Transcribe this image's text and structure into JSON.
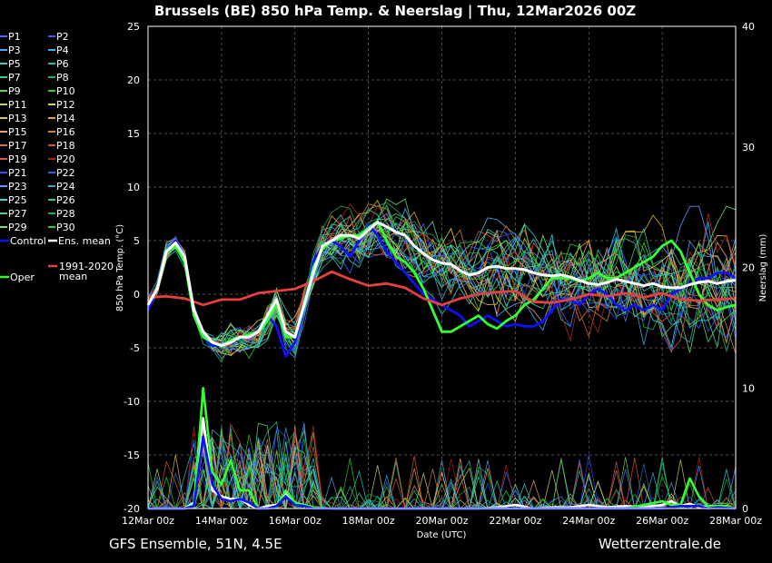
{
  "chart_data": {
    "type": "line",
    "title": "Brussels  (BE)  850 hPa Temp. & Neerslag | Thu, 12Mar2026 00Z",
    "xlabel": "Date (UTC)",
    "ylabel": "850 hPa Temp. (°C)",
    "y2label": "Neerslag (mm)",
    "ylim": [
      -20,
      25
    ],
    "yticks": [
      25,
      20,
      15,
      10,
      5,
      0,
      -5,
      -10,
      -15,
      -20
    ],
    "y2lim": [
      0,
      40
    ],
    "y2ticks": [
      40,
      30,
      20,
      10,
      0
    ],
    "xlim_days": [
      0,
      16
    ],
    "xticks": [
      "12Mar 00z",
      "14Mar 00z",
      "16Mar 00z",
      "18Mar 00z",
      "20Mar 00z",
      "22Mar 00z",
      "24Mar 00z",
      "26Mar 00z",
      "28Mar 00z"
    ],
    "grid": true,
    "legend_position": "left",
    "legend": [
      {
        "name": "P1",
        "color": "#4d6bff"
      },
      {
        "name": "P2",
        "color": "#3a5eff"
      },
      {
        "name": "P3",
        "color": "#4aa8ff"
      },
      {
        "name": "P4",
        "color": "#3fb4e8"
      },
      {
        "name": "P5",
        "color": "#2ad1d1"
      },
      {
        "name": "P6",
        "color": "#23c2a8"
      },
      {
        "name": "P7",
        "color": "#34d19a"
      },
      {
        "name": "P8",
        "color": "#20b060"
      },
      {
        "name": "P9",
        "color": "#5cd65c"
      },
      {
        "name": "P10",
        "color": "#2bcf2b"
      },
      {
        "name": "P11",
        "color": "#b8d96a"
      },
      {
        "name": "P12",
        "color": "#d8d060"
      },
      {
        "name": "P13",
        "color": "#e6c040"
      },
      {
        "name": "P14",
        "color": "#e0a830"
      },
      {
        "name": "P15",
        "color": "#e8a070"
      },
      {
        "name": "P16",
        "color": "#c88040"
      },
      {
        "name": "P17",
        "color": "#e07040"
      },
      {
        "name": "P18",
        "color": "#d05a30"
      },
      {
        "name": "P19",
        "color": "#e05050"
      },
      {
        "name": "P20",
        "color": "#b02020"
      },
      {
        "name": "P21",
        "color": "#3050ff"
      },
      {
        "name": "P22",
        "color": "#2068d8"
      },
      {
        "name": "P23",
        "color": "#5a9cff"
      },
      {
        "name": "P24",
        "color": "#40a0d0"
      },
      {
        "name": "P25",
        "color": "#30d8e0"
      },
      {
        "name": "P26",
        "color": "#28c8a0"
      },
      {
        "name": "P27",
        "color": "#50d090"
      },
      {
        "name": "P28",
        "color": "#18a850"
      },
      {
        "name": "P29",
        "color": "#70e070"
      },
      {
        "name": "P30",
        "color": "#30d030"
      },
      {
        "name": "Control",
        "color": "#1010ff"
      },
      {
        "name": "Ens. mean",
        "color": "#ffffff"
      },
      {
        "name": "1991-2020 mean",
        "color": "#e84040"
      },
      {
        "name": "Oper",
        "color": "#33ff33"
      }
    ],
    "temperature_series": [
      {
        "name": "Control",
        "color": "#1010ff",
        "x": [
          0,
          0.25,
          0.5,
          0.75,
          1,
          1.25,
          1.5,
          1.75,
          2,
          2.25,
          2.5,
          2.75,
          3,
          3.25,
          3.5,
          3.75,
          4,
          4.25,
          4.5,
          4.75,
          5,
          5.25,
          5.5,
          5.75,
          6,
          6.25,
          6.5,
          6.75,
          7,
          7.25,
          7.5,
          7.75,
          8,
          8.25,
          8.5,
          8.75,
          9,
          9.25,
          9.5,
          9.75,
          10,
          10.25,
          10.5,
          10.75,
          11,
          11.25,
          11.5,
          11.75,
          12,
          12.25,
          12.5,
          12.75,
          13,
          13.25,
          13.5,
          13.75,
          14,
          14.25,
          14.5,
          14.75,
          15,
          15.25,
          15.5,
          15.75,
          16
        ],
        "y": [
          -1.5,
          0.5,
          4,
          5,
          3.5,
          -1.5,
          -4,
          -4.8,
          -4.8,
          -4.5,
          -4,
          -4,
          -3.5,
          -2,
          -3,
          -5.8,
          -4.5,
          -1,
          3,
          4.5,
          5,
          4.5,
          3.5,
          5,
          6.5,
          5.5,
          4,
          3,
          2,
          1,
          0,
          -0.5,
          -1,
          -1.5,
          -2,
          -3,
          -2.5,
          -2,
          -2.5,
          -3,
          -2.8,
          -3,
          -3,
          -2.5,
          -1.5,
          -0.5,
          -0.5,
          -1,
          0,
          0.5,
          0,
          -1,
          -1.5,
          -1,
          -1.5,
          -1,
          -1.5,
          0,
          0.5,
          1,
          1.5,
          1.5,
          2,
          2,
          1.5
        ]
      },
      {
        "name": "Ens. mean",
        "color": "#ffffff",
        "x": [
          0,
          0.25,
          0.5,
          0.75,
          1,
          1.25,
          1.5,
          1.75,
          2,
          2.25,
          2.5,
          2.75,
          3,
          3.25,
          3.5,
          3.75,
          4,
          4.25,
          4.5,
          4.75,
          5,
          5.25,
          5.5,
          5.75,
          6,
          6.25,
          6.5,
          6.75,
          7,
          7.25,
          7.5,
          7.75,
          8,
          8.25,
          8.5,
          8.75,
          9,
          9.25,
          9.5,
          9.75,
          10,
          10.25,
          10.5,
          10.75,
          11,
          11.25,
          11.5,
          11.75,
          12,
          12.25,
          12.5,
          12.75,
          13,
          13.25,
          13.5,
          13.75,
          14,
          14.25,
          14.5,
          14.75,
          15,
          15.25,
          15.5,
          15.75,
          16
        ],
        "y": [
          -1,
          0.5,
          4,
          4.8,
          3.5,
          -1.5,
          -3.5,
          -4.5,
          -4.8,
          -4.5,
          -4,
          -4,
          -3.5,
          -2,
          -0.5,
          -3.5,
          -4,
          -1,
          2,
          4.5,
          5,
          5.5,
          5.5,
          5.2,
          6,
          6.7,
          6.3,
          5.8,
          5.5,
          4.5,
          3.8,
          3.2,
          2.9,
          2.8,
          2.2,
          1.8,
          2,
          2.5,
          2.6,
          2.4,
          2.4,
          2.3,
          2,
          1.8,
          1.7,
          1.8,
          1.6,
          1.3,
          1,
          0.9,
          1.1,
          1.4,
          1.2,
          1,
          0.8,
          1.0,
          0.7,
          0.6,
          0.6,
          0.9,
          1.1,
          1.2,
          1.0,
          1.2,
          1.3
        ]
      },
      {
        "name": "1991-2020 mean",
        "color": "#e84040",
        "x": [
          0,
          0.5,
          1,
          1.5,
          2,
          2.5,
          3,
          3.5,
          4,
          4.5,
          5,
          5.5,
          6,
          6.5,
          7,
          7.5,
          8,
          8.5,
          9,
          9.5,
          10,
          10.5,
          11,
          11.5,
          12,
          12.5,
          13,
          13.5,
          14,
          14.5,
          15,
          15.5,
          16
        ],
        "y": [
          -0.3,
          -0.2,
          -0.4,
          -1,
          -0.5,
          -0.5,
          0.1,
          0.3,
          0.5,
          1.2,
          2.1,
          1.4,
          0.8,
          1.0,
          0.6,
          -0.4,
          -1.0,
          -0.4,
          0,
          0.2,
          0.3,
          -0.7,
          -0.8,
          -0.5,
          0.0,
          -0.2,
          0.1,
          -0.3,
          0.1,
          -0.5,
          -0.6,
          -0.5,
          -0.4
        ]
      },
      {
        "name": "Oper",
        "color": "#33ff33",
        "x": [
          0,
          0.25,
          0.5,
          0.75,
          1,
          1.25,
          1.5,
          1.75,
          2,
          2.25,
          2.5,
          2.75,
          3,
          3.25,
          3.5,
          3.75,
          4,
          4.25,
          4.5,
          4.75,
          5,
          5.25,
          5.5,
          5.75,
          6,
          6.25,
          6.5,
          6.75,
          7,
          7.25,
          7.5,
          7.75,
          8,
          8.25,
          8.5,
          8.75,
          9,
          9.25,
          9.5,
          9.75,
          10,
          10.25,
          10.5,
          10.75,
          11,
          11.25,
          11.5,
          11.75,
          12,
          12.25,
          12.5,
          12.75,
          13,
          13.25,
          13.5,
          13.75,
          14,
          14.25,
          14.5,
          14.75,
          15,
          15.25,
          15.5,
          15.75,
          16
        ],
        "y": [
          -1,
          0.5,
          4,
          4.5,
          3,
          -2,
          -4,
          -4.5,
          -4.8,
          -4.3,
          -4,
          -3.8,
          -3.5,
          -2.5,
          -1,
          -4,
          -4,
          -1,
          2.5,
          4.2,
          5,
          5.2,
          5.5,
          5.5,
          6.2,
          6.8,
          5,
          3.5,
          3,
          2,
          0.5,
          -1.5,
          -3.5,
          -3.5,
          -3,
          -2.5,
          -2,
          -2.8,
          -3.2,
          -2.5,
          -2,
          -1,
          -0.5,
          0.5,
          1.5,
          1.5,
          1.5,
          1.2,
          1.5,
          2,
          1.5,
          1.5,
          2,
          2.5,
          3,
          3.5,
          4.5,
          5,
          4,
          2,
          0,
          -1,
          -1.5,
          -1.2,
          -1
        ]
      }
    ],
    "precipitation_series": [
      {
        "name": "Ens. mean",
        "color": "#ffffff",
        "x": [
          0,
          1,
          1.25,
          1.5,
          1.75,
          2,
          2.25,
          2.5,
          2.75,
          3,
          3.25,
          3.5,
          3.75,
          4,
          4.25,
          4.5,
          5,
          6,
          7,
          8,
          9,
          9.5,
          10,
          10.5,
          11,
          11.5,
          12,
          12.5,
          13,
          13.5,
          14,
          14.25,
          14.5,
          14.75,
          15,
          15.5,
          16
        ],
        "y": [
          0,
          0,
          0.5,
          7.5,
          1.5,
          1,
          0.8,
          0.8,
          0.3,
          0,
          0.2,
          0.3,
          1.3,
          0.5,
          0.2,
          0.1,
          0,
          0,
          0,
          0,
          0,
          0.1,
          0.3,
          0,
          0.1,
          0.1,
          0.3,
          0.1,
          0.2,
          0.1,
          0.3,
          0.6,
          0.2,
          0.4,
          0.1,
          0.2,
          0
        ]
      },
      {
        "name": "Oper",
        "color": "#33ff33",
        "x": [
          0,
          1,
          1.25,
          1.5,
          1.75,
          2,
          2.25,
          2.5,
          2.75,
          3,
          3.25,
          3.5,
          3.75,
          4,
          4.25,
          4.5,
          5,
          6,
          7,
          8,
          9,
          10,
          11,
          12,
          13,
          13.5,
          14,
          14.25,
          14.5,
          14.75,
          15,
          15.25,
          15.5,
          15.75,
          16
        ],
        "y": [
          0,
          0,
          0.3,
          10,
          3,
          2,
          4,
          1.5,
          1.5,
          0,
          0,
          0.2,
          1.5,
          0.5,
          0.3,
          0.1,
          0,
          0,
          0,
          0,
          0,
          0,
          0,
          0,
          0,
          0.3,
          0.6,
          0.3,
          0.3,
          2.5,
          1,
          0.2,
          0.2,
          0.2,
          0
        ]
      },
      {
        "name": "Control",
        "color": "#1010ff",
        "x": [
          0,
          1,
          1.25,
          1.5,
          1.75,
          2,
          2.25,
          2.5,
          2.75,
          3,
          3.25,
          3.5,
          3.75,
          4,
          4.25,
          4.5,
          5,
          6,
          7,
          8,
          9,
          10,
          11,
          12,
          13,
          14,
          14.5,
          15,
          15.25,
          15.5,
          16
        ],
        "y": [
          0,
          0,
          0.2,
          6,
          2,
          0.8,
          0.6,
          0.8,
          0.5,
          0,
          0,
          0.2,
          1.0,
          0.3,
          0.2,
          0,
          0,
          0,
          0,
          0,
          0,
          0,
          0,
          0,
          0,
          0,
          0.2,
          0.2,
          0,
          0.1,
          0
        ]
      }
    ]
  },
  "footer": {
    "left": "GFS Ensemble, 51N, 4.5E",
    "right": "Wetterzentrale.de"
  }
}
